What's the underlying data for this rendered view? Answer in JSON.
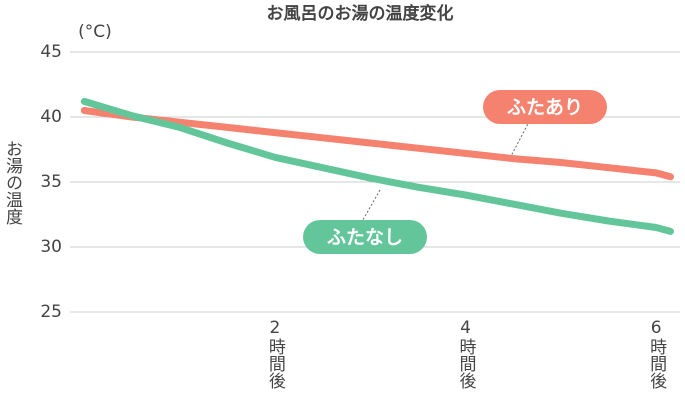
{
  "chart_data": {
    "type": "line",
    "title": "お風呂のお湯の温度変化",
    "unit_label": "(°C)",
    "y_label": "お湯の温度",
    "x": [
      0,
      0.5,
      1,
      1.5,
      2,
      2.5,
      3,
      3.5,
      4,
      4.5,
      5,
      5.5,
      6,
      6.15
    ],
    "series": [
      {
        "name": "ふたあり",
        "color": "#f5816f",
        "values": [
          40.5,
          40.0,
          39.6,
          39.2,
          38.8,
          38.4,
          38.0,
          37.6,
          37.2,
          36.8,
          36.5,
          36.1,
          35.7,
          35.4
        ]
      },
      {
        "name": "ふたなし",
        "color": "#63c69a",
        "values": [
          41.2,
          40.1,
          39.2,
          38.0,
          36.9,
          36.1,
          35.3,
          34.6,
          34.0,
          33.3,
          32.6,
          32.0,
          31.5,
          31.2
        ]
      }
    ],
    "xlim": [
      -0.15,
      6.25
    ],
    "xticks": [
      {
        "value": 2,
        "label": "2時間後"
      },
      {
        "value": 4,
        "label": "4時間後"
      },
      {
        "value": 6,
        "label": "6時間後"
      }
    ],
    "ylim": [
      25,
      45
    ],
    "yticks": [
      25,
      30,
      35,
      40,
      45
    ],
    "grid": true
  }
}
